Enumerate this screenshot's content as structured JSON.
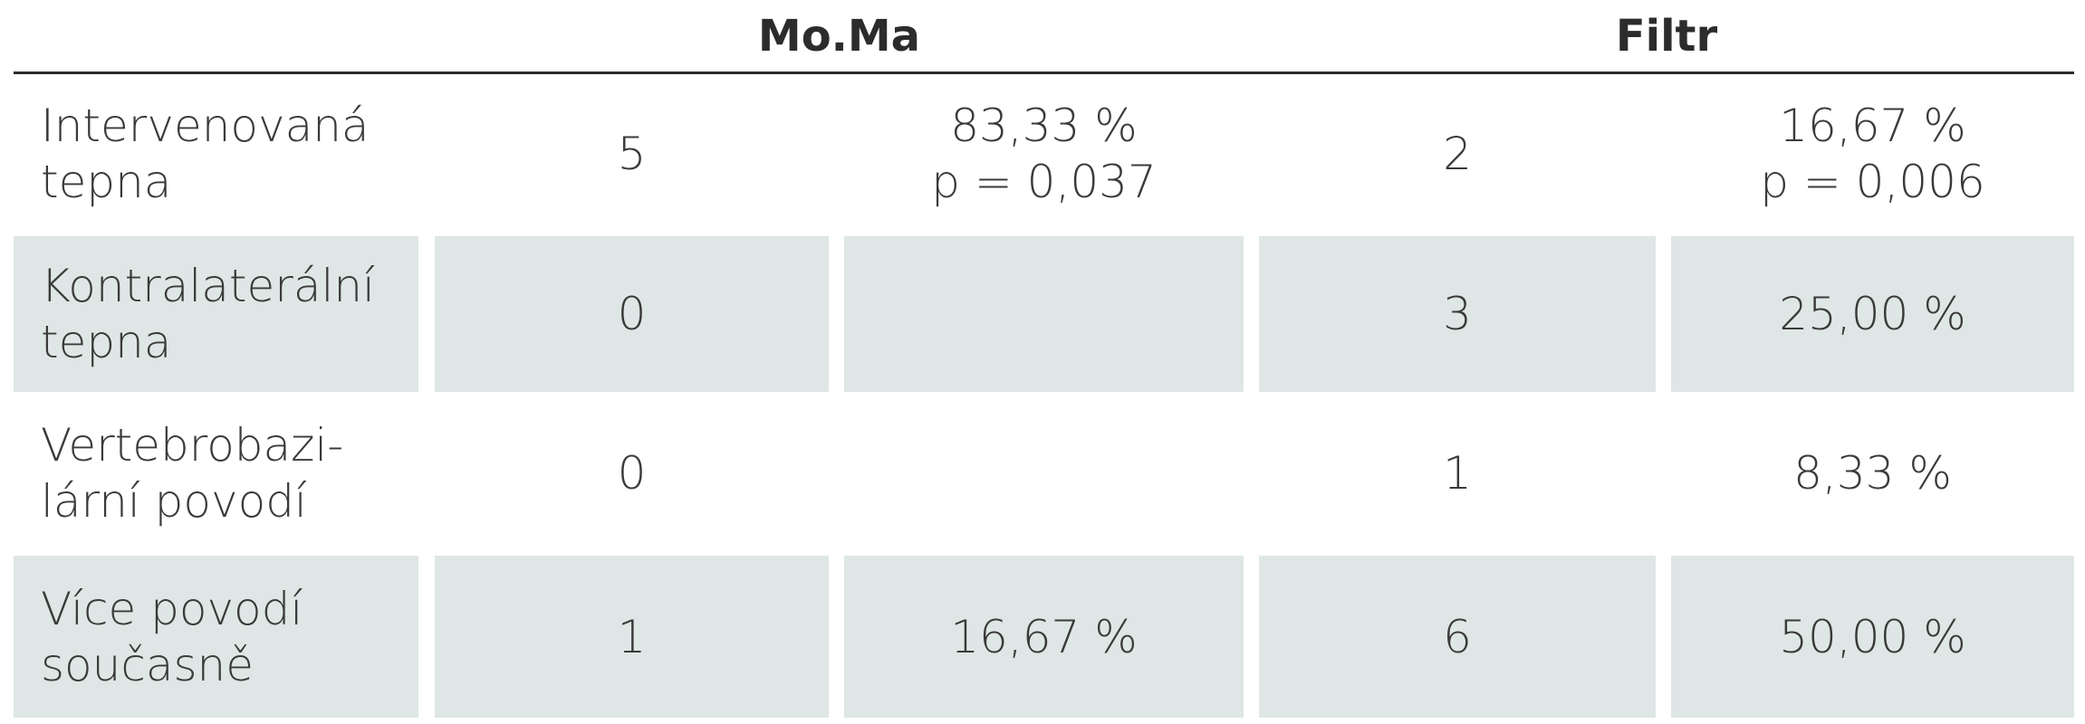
{
  "table": {
    "header": [
      "Mo.Ma",
      "Filtr"
    ],
    "rows": [
      [
        "Intervenovaná\ntepna",
        "5",
        "83,33 %\np = 0,037",
        "2",
        "16,67 %\np = 0,006"
      ],
      [
        "Kontralaterální\ntepna",
        "0",
        null,
        "3",
        "25,00 %"
      ],
      [
        "Vertebrobazi-\nlární povodí",
        "0",
        null,
        "1",
        "8,33 %"
      ],
      [
        "Více povodí\nsoučasně",
        "1",
        "16,67 %",
        "6",
        "50,00 %"
      ]
    ]
  }
}
